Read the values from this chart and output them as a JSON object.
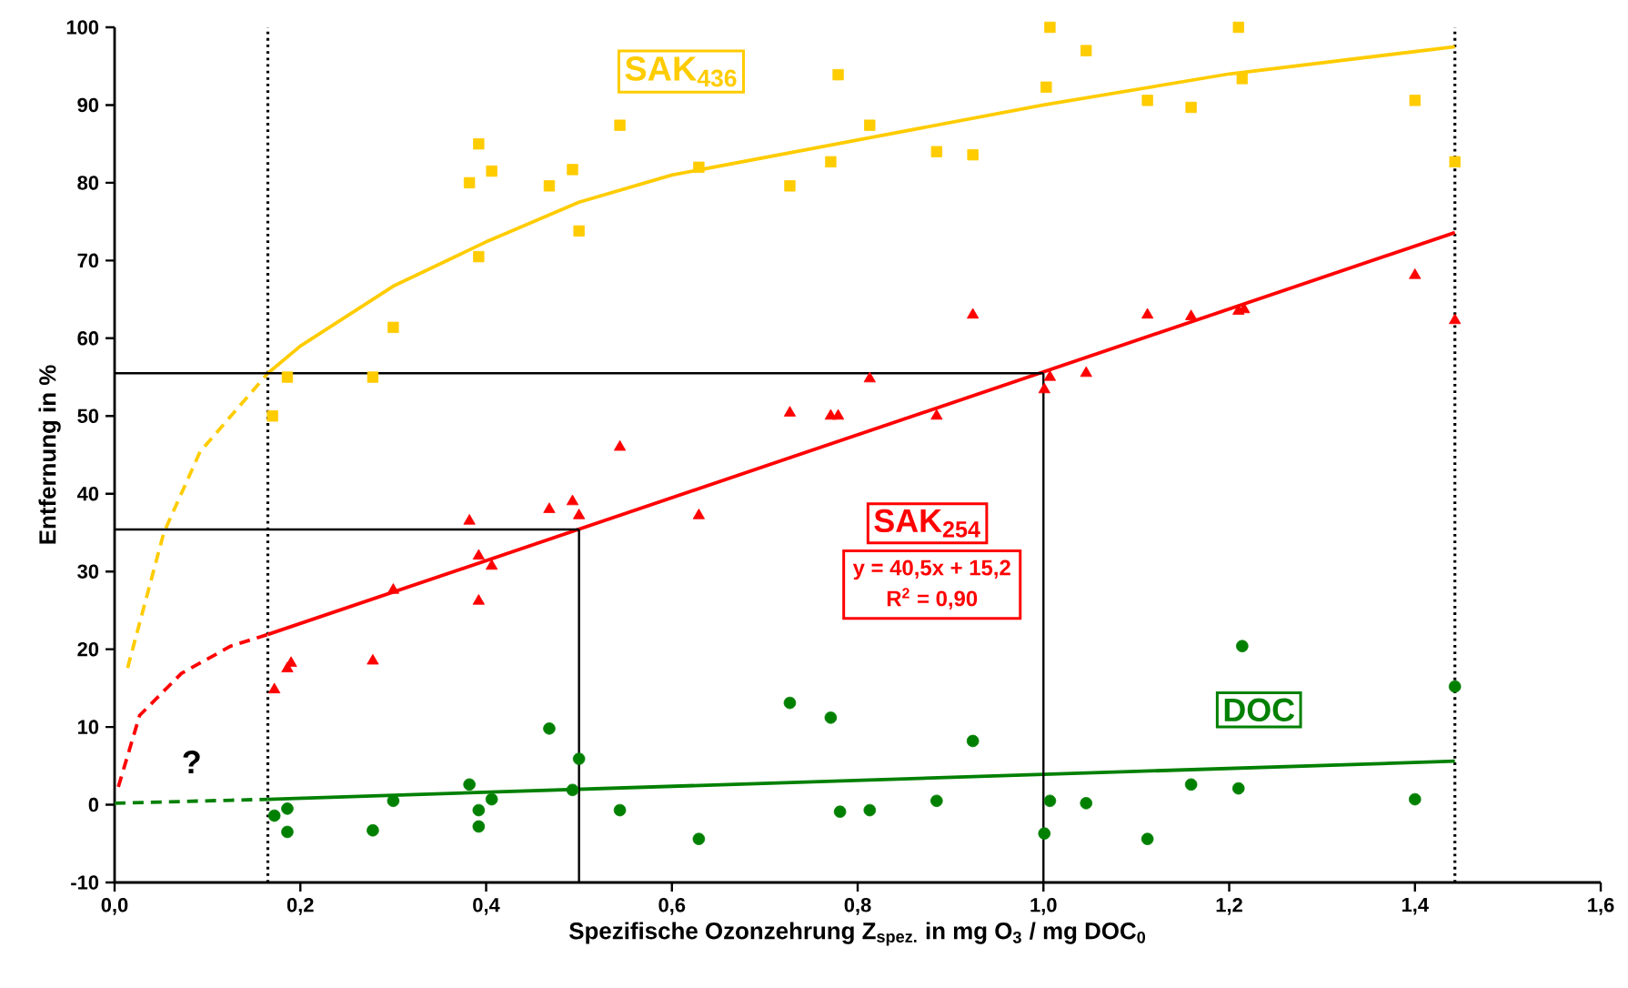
{
  "chart_data": {
    "type": "scatter",
    "xlabel": "Spezifische Ozonzehrung Z$_{spez.}$  in mg O$_{3}$ / mg DOC$_{0}$",
    "ylabel": "Entfernung in %",
    "xlim": [
      0,
      1.6
    ],
    "ylim": [
      -10,
      100
    ],
    "xticks": [
      {
        "value": 0,
        "label": "0,0"
      },
      {
        "value": 0.2,
        "label": "0,2"
      },
      {
        "value": 0.4,
        "label": "0,4"
      },
      {
        "value": 0.6,
        "label": "0,6"
      },
      {
        "value": 0.8,
        "label": "0,8"
      },
      {
        "value": 1.0,
        "label": "1,0"
      },
      {
        "value": 1.2,
        "label": "1,2"
      },
      {
        "value": 1.4,
        "label": "1,4"
      },
      {
        "value": 1.6,
        "label": "1,6"
      }
    ],
    "yticks": [
      -10,
      0,
      10,
      20,
      30,
      40,
      50,
      60,
      70,
      80,
      90,
      100
    ],
    "grid": false,
    "ref_lines": [
      {
        "axis": "x",
        "value": 0.165,
        "line_style": "dotted",
        "color": "#000000"
      },
      {
        "axis": "x",
        "value": 1.443,
        "line_style": "dotted",
        "color": "#000000"
      }
    ],
    "annotations": [
      "y = 40,5x + 15,2",
      "R$^{2}$ = 0,90",
      "?"
    ],
    "series": [
      {
        "name": "SAK$_{436}$",
        "marker": "square",
        "color": "#ffcc00",
        "x": [
          0.17,
          0.186,
          0.278,
          0.3,
          0.382,
          0.392,
          0.392,
          0.406,
          0.468,
          0.493,
          0.5,
          0.544,
          0.629,
          0.727,
          0.771,
          0.779,
          0.813,
          0.885,
          0.924,
          1.003,
          1.007,
          1.046,
          1.112,
          1.159,
          1.21,
          1.214,
          1.4,
          1.443
        ],
        "values": [
          50,
          55,
          55,
          61.4,
          80,
          85,
          70.5,
          81.5,
          79.6,
          81.7,
          73.8,
          87.4,
          82,
          79.6,
          82.7,
          93.9,
          87.4,
          84,
          83.6,
          92.3,
          100,
          97,
          90.6,
          89.7,
          100,
          93.4,
          90.6,
          82.7
        ]
      },
      {
        "name": "SAK$_{254}$",
        "marker": "triangle",
        "color": "#ff0000",
        "x": [
          0.172,
          0.186,
          0.19,
          0.278,
          0.3,
          0.382,
          0.392,
          0.392,
          0.406,
          0.468,
          0.493,
          0.5,
          0.544,
          0.629,
          0.727,
          0.771,
          0.779,
          0.813,
          0.885,
          0.924,
          1.001,
          1.007,
          1.046,
          1.112,
          1.159,
          1.21,
          1.216,
          1.4,
          1.443
        ],
        "values": [
          14.8,
          17.5,
          18.2,
          18.5,
          27.6,
          36.5,
          32,
          26.2,
          30.7,
          38,
          39,
          37.2,
          46,
          37.2,
          50.4,
          50,
          50,
          54.8,
          50,
          63,
          53.4,
          55,
          55.5,
          63,
          62.8,
          63.5,
          63.7,
          68.1,
          62.3
        ]
      },
      {
        "name": "DOC",
        "marker": "circle",
        "color": "#008000",
        "x": [
          0.172,
          0.186,
          0.186,
          0.278,
          0.3,
          0.382,
          0.392,
          0.392,
          0.406,
          0.468,
          0.493,
          0.5,
          0.544,
          0.629,
          0.727,
          0.771,
          0.781,
          0.813,
          0.885,
          0.924,
          1.001,
          1.007,
          1.046,
          1.112,
          1.159,
          1.21,
          1.214,
          1.4,
          1.443
        ],
        "values": [
          -1.4,
          -0.5,
          -3.5,
          -3.3,
          0.5,
          2.6,
          -0.7,
          -2.8,
          0.7,
          9.8,
          1.9,
          5.9,
          -0.7,
          -4.4,
          13.1,
          11.2,
          -0.9,
          -0.7,
          0.5,
          8.2,
          -3.7,
          0.5,
          0.2,
          -4.4,
          2.6,
          2.1,
          20.4,
          0.7,
          15.2
        ]
      },
      {
        "type": "line",
        "line_style": "solid",
        "color": "#ffcc00",
        "x": [
          0.165,
          0.2,
          0.3,
          0.4,
          0.5,
          0.6,
          0.8,
          1.0,
          1.2,
          1.443
        ],
        "values": [
          55.5,
          59,
          66.7,
          72.4,
          77.5,
          81,
          85.5,
          90,
          94,
          97.5
        ]
      },
      {
        "type": "line",
        "line_style": "dashed",
        "color": "#ffcc00",
        "x": [
          0.014,
          0.053,
          0.092,
          0.165
        ],
        "values": [
          17.6,
          35,
          45.4,
          55.5
        ]
      },
      {
        "type": "line",
        "line_style": "solid",
        "color": "#ff0000",
        "x": [
          0.165,
          1.443
        ],
        "values": [
          21.9,
          73.6
        ]
      },
      {
        "type": "line",
        "line_style": "dashed",
        "color": "#ff0000",
        "x": [
          0.004,
          0.027,
          0.072,
          0.125,
          0.165
        ],
        "values": [
          2.3,
          11.5,
          16.9,
          20.4,
          21.9
        ]
      },
      {
        "type": "line",
        "line_style": "solid",
        "color": "#008000",
        "x": [
          0.165,
          1.443
        ],
        "values": [
          0.7,
          5.6
        ]
      },
      {
        "type": "line",
        "line_style": "dashed",
        "color": "#008000",
        "x": [
          0,
          0.165
        ],
        "values": [
          0.2,
          0.7
        ]
      },
      {
        "type": "line",
        "line_style": "solid",
        "color": "#000000",
        "x": [
          0.5,
          0.5
        ],
        "values": [
          -10,
          35.4
        ]
      },
      {
        "type": "line",
        "line_style": "solid",
        "color": "#000000",
        "x": [
          0.5,
          0
        ],
        "values": [
          35.4,
          35.4
        ]
      },
      {
        "type": "line",
        "line_style": "solid",
        "color": "#000000",
        "x": [
          1.0,
          1.0
        ],
        "values": [
          -10,
          55.5
        ]
      },
      {
        "type": "line",
        "line_style": "solid",
        "color": "#000000",
        "x": [
          1.0,
          0
        ],
        "values": [
          55.5,
          55.5
        ]
      }
    ]
  }
}
